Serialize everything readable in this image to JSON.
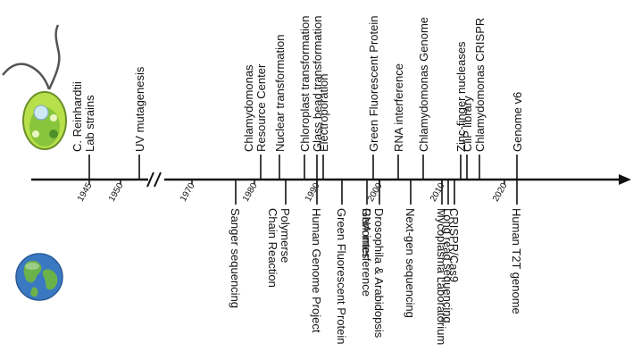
{
  "axis": {
    "year_labels": [
      {
        "text": "1945",
        "year": 1945
      },
      {
        "text": "1950",
        "year": 1950
      },
      {
        "text": "1970",
        "year": 1970
      },
      {
        "text": "1980",
        "year": 1980
      },
      {
        "text": "1990",
        "year": 1990
      },
      {
        "text": "2000",
        "year": 2000
      },
      {
        "text": "2010",
        "year": 2010
      },
      {
        "text": "2020",
        "year": 2020
      }
    ],
    "break_between": [
      1955,
      1965
    ]
  },
  "chlamydomonas_events": [
    {
      "label": "C. Reinhardtii\nLab strains",
      "year": 1945
    },
    {
      "label": "UV mutagenesis",
      "year": 1953
    },
    {
      "label": "Chlamydomonas\nResource Center",
      "year": 1981
    },
    {
      "label": "Nuclear transformation",
      "year": 1984
    },
    {
      "label": "Chloroplast transformation",
      "year": 1988
    },
    {
      "label": "Glass bead transformation",
      "year": 1990
    },
    {
      "label": "Electroporation",
      "year": 1991
    },
    {
      "label": "Green Fluorescent Protein",
      "year": 1999
    },
    {
      "label": "RNA interference",
      "year": 2003
    },
    {
      "label": "Chlamydomonas Genome",
      "year": 2007
    },
    {
      "label": "Zinc-finger nucleases",
      "year": 2013
    },
    {
      "label": "CliP library",
      "year": 2014
    },
    {
      "label": "Chlamydomonas CRISPR",
      "year": 2016
    },
    {
      "label": "Genome v6",
      "year": 2022
    }
  ],
  "global_events": [
    {
      "label": "Sanger sequencing",
      "year": 1977
    },
    {
      "label": "Polymerse\nChain Reaction",
      "year": 1985
    },
    {
      "label": "Human Genome Project",
      "year": 1990
    },
    {
      "label": "Green Fluorescent Protein",
      "year": 1994
    },
    {
      "label": "RNA interference",
      "year": 1998
    },
    {
      "label": "Drosophila & Arabidopsis\nGenomes",
      "year": 2000
    },
    {
      "label": "Next-gen sequencing",
      "year": 2005
    },
    {
      "label": "Mycoplasma Laboratorium",
      "year": 2010
    },
    {
      "label": "Long read sequencing",
      "year": 2011
    },
    {
      "label": "CRISPR/Cas9",
      "year": 2012
    },
    {
      "label": "Human T2T genome",
      "year": 2022
    }
  ],
  "colors": {
    "axis": "#111111",
    "algae_body": "#b8e04a",
    "algae_outline": "#6b8f2a",
    "chloroplast": "#7fbf3a",
    "nucleus": "#cfe8f5",
    "earth_ocean": "#3b78c2",
    "earth_land": "#6bb24a"
  },
  "icons": {
    "top": "chlamydomonas-cell-icon",
    "bottom": "earth-globe-icon"
  }
}
